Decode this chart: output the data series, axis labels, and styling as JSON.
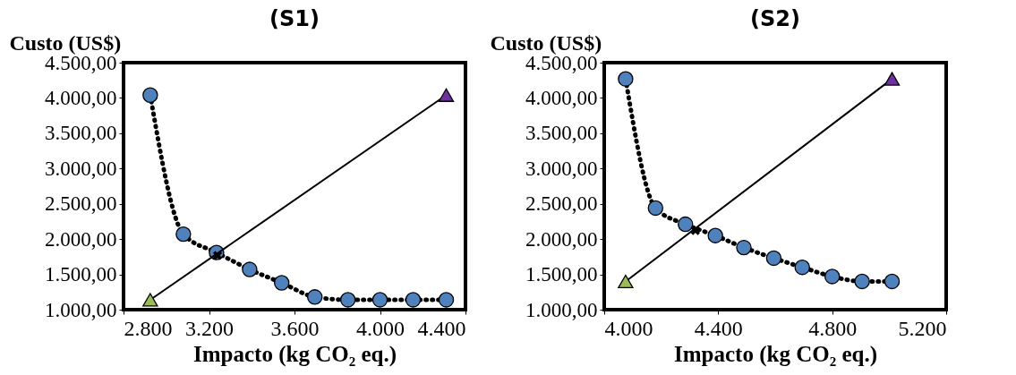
{
  "chart_data": [
    {
      "type": "line",
      "title": "(S1)",
      "xlabel": "Impacto (kg CO₂ eq.)",
      "ylabel": "Custo (US$)",
      "xlim": [
        2800,
        4400
      ],
      "xticks": [
        {
          "value": 2800,
          "label": "2.800"
        },
        {
          "value": 3200,
          "label": "3.200"
        },
        {
          "value": 3600,
          "label": "3.600"
        },
        {
          "value": 4000,
          "label": "4.000"
        },
        {
          "value": 4400,
          "label": "4.400"
        }
      ],
      "ylim": [
        1000,
        4500
      ],
      "yticks": [
        {
          "value": 1000,
          "label": "1.000,00"
        },
        {
          "value": 1500,
          "label": "1.500,00"
        },
        {
          "value": 2000,
          "label": "2.000,00"
        },
        {
          "value": 2500,
          "label": "2.500,00"
        },
        {
          "value": 3000,
          "label": "3.000,00"
        },
        {
          "value": 3500,
          "label": "3.500,00"
        },
        {
          "value": 4000,
          "label": "4.000,00"
        },
        {
          "value": 4500,
          "label": "4.500,00"
        }
      ],
      "grid": false,
      "series": [
        {
          "type": "line",
          "color": "#000000",
          "line_style": "dotted",
          "marker": "none",
          "x": [
            2925,
            3080,
            3235,
            3390,
            3540,
            3695,
            3850,
            4000,
            4155,
            4310
          ],
          "values": [
            4040,
            2070,
            1810,
            1570,
            1380,
            1180,
            1140,
            1140,
            1140,
            1140
          ]
        },
        {
          "type": "scatter",
          "color": "#4f81bd",
          "marker": "circle",
          "x": [
            2925,
            3080,
            3235,
            3390,
            3540,
            3695,
            3850,
            4000,
            4155,
            4310
          ],
          "values": [
            4040,
            2070,
            1810,
            1570,
            1380,
            1180,
            1140,
            1140,
            1140,
            1140
          ]
        },
        {
          "type": "line",
          "color": "#000000",
          "line_style": "solid",
          "marker": "none",
          "x": [
            2925,
            4310
          ],
          "values": [
            1140,
            4040
          ]
        },
        {
          "type": "scatter",
          "color": "#9bbb59",
          "marker": "triangle",
          "x": [
            2925
          ],
          "values": [
            1140
          ]
        },
        {
          "type": "scatter",
          "color": "#7030a0",
          "marker": "triangle",
          "x": [
            4310
          ],
          "values": [
            4040
          ]
        },
        {
          "type": "scatter",
          "color": "#000000",
          "marker": "cross",
          "x": [
            3240
          ],
          "values": [
            1770
          ]
        }
      ]
    },
    {
      "type": "line",
      "title": "(S2)",
      "xlabel": "Impacto (kg CO₂ eq.)",
      "ylabel": "Custo (US$)",
      "xlim": [
        4000,
        5200
      ],
      "xticks": [
        {
          "value": 4000,
          "label": "4.000"
        },
        {
          "value": 4400,
          "label": "4.400"
        },
        {
          "value": 4800,
          "label": "4.800"
        },
        {
          "value": 5200,
          "label": "5.200"
        }
      ],
      "ylim": [
        1000,
        4500
      ],
      "yticks": [
        {
          "value": 1000,
          "label": "1.000,00"
        },
        {
          "value": 1500,
          "label": "1.500,00"
        },
        {
          "value": 2000,
          "label": "2.000,00"
        },
        {
          "value": 2500,
          "label": "2.500,00"
        },
        {
          "value": 3000,
          "label": "3.000,00"
        },
        {
          "value": 3500,
          "label": "3.500,00"
        },
        {
          "value": 4000,
          "label": "4.000,00"
        },
        {
          "value": 4500,
          "label": "4.500,00"
        }
      ],
      "grid": false,
      "series": [
        {
          "type": "line",
          "color": "#000000",
          "line_style": "dotted",
          "marker": "none",
          "x": [
            4075,
            4180,
            4285,
            4390,
            4490,
            4595,
            4695,
            4800,
            4905,
            5010
          ],
          "values": [
            4270,
            2440,
            2210,
            2050,
            1880,
            1730,
            1600,
            1470,
            1400,
            1400
          ]
        },
        {
          "type": "scatter",
          "color": "#4f81bd",
          "marker": "circle",
          "x": [
            4075,
            4180,
            4285,
            4390,
            4490,
            4595,
            4695,
            4800,
            4905,
            5010
          ],
          "values": [
            4270,
            2440,
            2210,
            2050,
            1880,
            1730,
            1600,
            1470,
            1400,
            1400
          ]
        },
        {
          "type": "line",
          "color": "#000000",
          "line_style": "solid",
          "marker": "none",
          "x": [
            4075,
            5010
          ],
          "values": [
            1400,
            4270
          ]
        },
        {
          "type": "scatter",
          "color": "#9bbb59",
          "marker": "triangle",
          "x": [
            4075
          ],
          "values": [
            1400
          ]
        },
        {
          "type": "scatter",
          "color": "#7030a0",
          "marker": "triangle",
          "x": [
            5010
          ],
          "values": [
            4270
          ]
        },
        {
          "type": "scatter",
          "color": "#000000",
          "marker": "cross",
          "x": [
            4320
          ],
          "values": [
            2120
          ]
        }
      ]
    }
  ]
}
